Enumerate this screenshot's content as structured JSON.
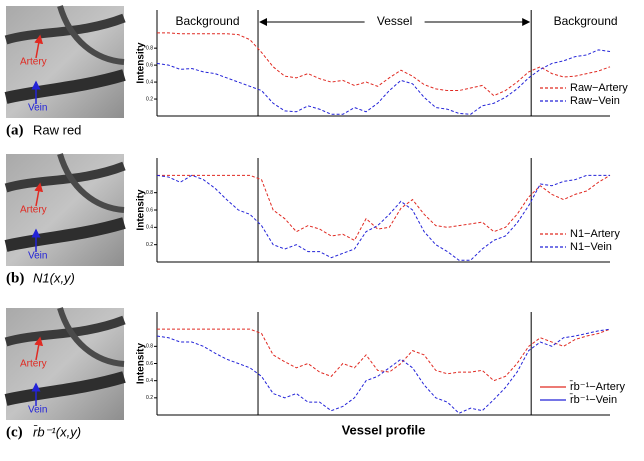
{
  "chart_data": [
    {
      "type": "line",
      "label": "(a)",
      "caption": "Raw red",
      "image_labels": [
        "Artery",
        "Vein"
      ],
      "y_label": "Intensity",
      "region_labels": [
        "Background",
        "Vessel",
        "Background"
      ],
      "ylim": [
        0,
        1.25
      ],
      "yticks": [
        0.2,
        0.4,
        0.6,
        0.8
      ],
      "series": [
        {
          "name": "Raw−Artery",
          "color": "#e02a22",
          "values": [
            0.98,
            0.98,
            0.97,
            0.97,
            0.97,
            0.97,
            0.97,
            0.96,
            0.9,
            0.75,
            0.58,
            0.47,
            0.45,
            0.5,
            0.44,
            0.4,
            0.42,
            0.36,
            0.4,
            0.35,
            0.45,
            0.54,
            0.47,
            0.37,
            0.32,
            0.3,
            0.3,
            0.33,
            0.36,
            0.24,
            0.3,
            0.4,
            0.52,
            0.58,
            0.5,
            0.46,
            0.47,
            0.5,
            0.53,
            0.58
          ]
        },
        {
          "name": "Raw−Vein",
          "color": "#2323d8",
          "values": [
            0.62,
            0.6,
            0.55,
            0.56,
            0.52,
            0.5,
            0.45,
            0.4,
            0.35,
            0.3,
            0.15,
            0.06,
            0.05,
            0.12,
            0.08,
            0.02,
            0.02,
            0.1,
            0.05,
            0.15,
            0.3,
            0.42,
            0.38,
            0.22,
            0.1,
            0.08,
            0.03,
            0.02,
            0.12,
            0.15,
            0.22,
            0.32,
            0.45,
            0.55,
            0.62,
            0.65,
            0.7,
            0.72,
            0.78,
            0.76
          ]
        }
      ]
    },
    {
      "type": "line",
      "label": "(b)",
      "caption": "N1(x,y)",
      "image_labels": [
        "Artery",
        "Vein"
      ],
      "y_label": "Intensity",
      "ylim": [
        0,
        1.2
      ],
      "yticks": [
        0.2,
        0.4,
        0.6,
        0.8
      ],
      "series": [
        {
          "name": "N1−Artery",
          "color": "#e02a22",
          "values": [
            1.0,
            1.0,
            1.0,
            1.0,
            1.0,
            1.0,
            1.0,
            1.0,
            1.0,
            0.95,
            0.6,
            0.5,
            0.35,
            0.42,
            0.38,
            0.3,
            0.32,
            0.25,
            0.5,
            0.38,
            0.4,
            0.62,
            0.72,
            0.55,
            0.42,
            0.4,
            0.42,
            0.44,
            0.46,
            0.35,
            0.4,
            0.55,
            0.75,
            0.88,
            0.78,
            0.72,
            0.78,
            0.82,
            0.92,
            1.0
          ]
        },
        {
          "name": "N1−Vein",
          "color": "#2323d8",
          "values": [
            1.0,
            0.98,
            0.92,
            1.0,
            0.95,
            0.85,
            0.72,
            0.6,
            0.55,
            0.42,
            0.2,
            0.15,
            0.2,
            0.12,
            0.12,
            0.05,
            0.1,
            0.15,
            0.35,
            0.42,
            0.55,
            0.7,
            0.6,
            0.35,
            0.2,
            0.12,
            0.02,
            0.02,
            0.15,
            0.25,
            0.3,
            0.45,
            0.65,
            0.9,
            0.88,
            0.93,
            0.95,
            1.0,
            1.0,
            1.0
          ]
        }
      ]
    },
    {
      "type": "line",
      "label": "(c)",
      "caption": "r̄b⁻¹(x,y)",
      "image_labels": [
        "Artery",
        "Vein"
      ],
      "y_label": "Intensity",
      "x_label": "Vessel profile",
      "ylim": [
        0,
        1.2
      ],
      "yticks": [
        0.2,
        0.4,
        0.6,
        0.8
      ],
      "series": [
        {
          "name": "r̄b⁻¹−Artery",
          "color": "#e02a22",
          "values": [
            1.0,
            1.0,
            1.0,
            1.0,
            1.0,
            1.0,
            1.0,
            1.0,
            1.0,
            0.95,
            0.7,
            0.62,
            0.55,
            0.6,
            0.5,
            0.45,
            0.6,
            0.55,
            0.7,
            0.52,
            0.5,
            0.6,
            0.75,
            0.7,
            0.52,
            0.48,
            0.5,
            0.5,
            0.52,
            0.4,
            0.45,
            0.6,
            0.8,
            0.9,
            0.85,
            0.8,
            0.88,
            0.92,
            0.95,
            1.0
          ]
        },
        {
          "name": "r̄b⁻¹−Vein",
          "color": "#2323d8",
          "values": [
            0.92,
            0.9,
            0.85,
            0.85,
            0.8,
            0.72,
            0.65,
            0.6,
            0.55,
            0.45,
            0.25,
            0.2,
            0.25,
            0.15,
            0.15,
            0.05,
            0.1,
            0.2,
            0.4,
            0.45,
            0.55,
            0.65,
            0.55,
            0.35,
            0.2,
            0.15,
            0.02,
            0.08,
            0.05,
            0.18,
            0.32,
            0.5,
            0.75,
            0.85,
            0.8,
            0.9,
            0.92,
            0.95,
            0.98,
            1.0
          ]
        }
      ]
    }
  ]
}
